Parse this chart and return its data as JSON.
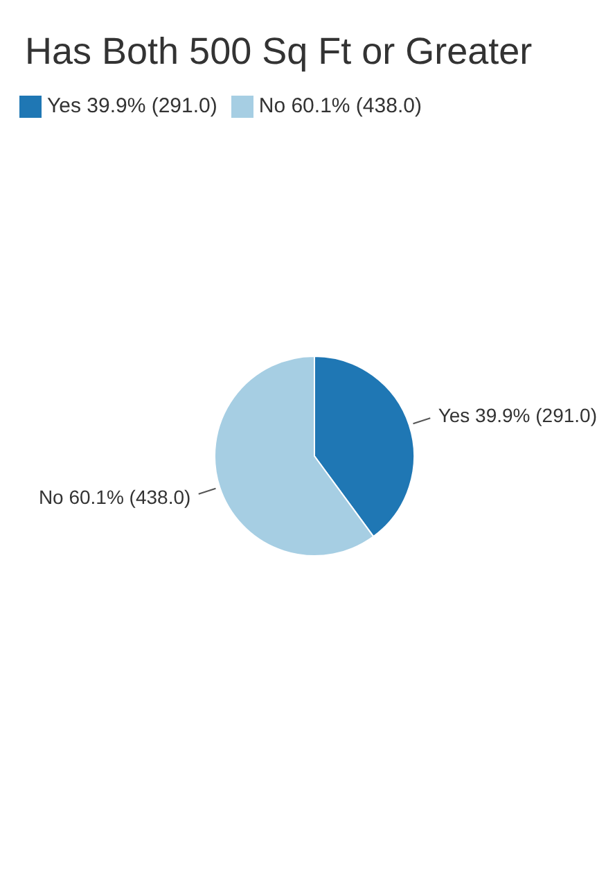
{
  "chart_data": {
    "type": "pie",
    "title": "Has Both 500 Sq Ft or Greater",
    "categories": [
      "Yes 39.9% (291.0)",
      "No 60.1% (438.0)"
    ],
    "values": [
      291,
      438
    ],
    "colors": [
      "#1f77b4",
      "#a6cee3"
    ],
    "legend": "top left"
  }
}
